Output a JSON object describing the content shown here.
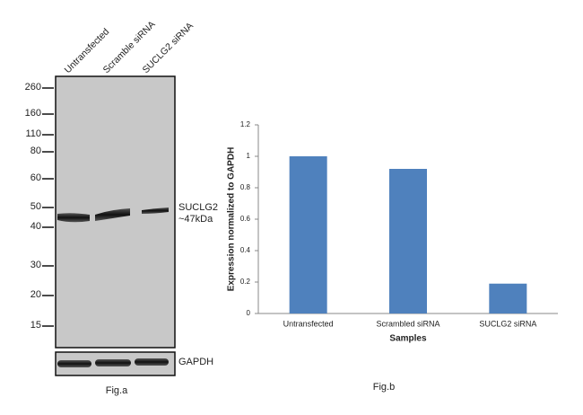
{
  "figure_a": {
    "lanes": [
      "Untransfected",
      "Scramble siRNA",
      "SUCLG2 siRNA"
    ],
    "markers": [
      260,
      160,
      110,
      80,
      60,
      50,
      40,
      30,
      20,
      15
    ],
    "band_label": [
      "SUCLG2",
      "~47kDa"
    ],
    "loading_label": "GAPDH",
    "caption": "Fig.a"
  },
  "chart_data": {
    "type": "bar",
    "ylabel": "Expression normalized to GAPDH",
    "xlabel": "Samples",
    "categories": [
      "Untransfected",
      "Scrambled siRNA",
      "SUCLG2 siRNA"
    ],
    "values": [
      1,
      0.92,
      0.19
    ],
    "color": "#4f81bd",
    "ylim": [
      0,
      1.2
    ],
    "yticks": [
      0,
      0.2,
      0.4,
      0.6,
      0.8,
      1,
      1.2
    ],
    "caption": "Fig.b"
  }
}
